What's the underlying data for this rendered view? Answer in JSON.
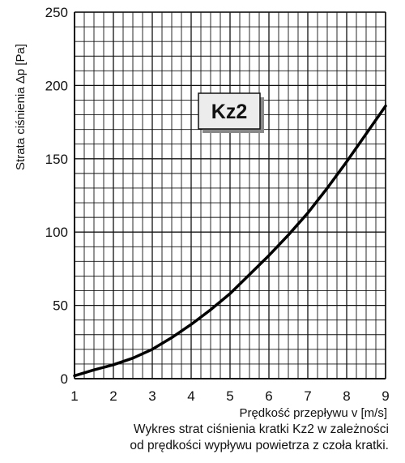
{
  "chart_data": {
    "type": "line",
    "xlabel": "Prędkość przepływu v [m/s]",
    "ylabel": "Strata ciśnienia Δp [Pa]",
    "xlim": [
      1,
      9
    ],
    "ylim": [
      0,
      250
    ],
    "xticks": [
      1,
      2,
      3,
      4,
      5,
      6,
      7,
      8,
      9
    ],
    "yticks": [
      0,
      50,
      100,
      150,
      200,
      250
    ],
    "grid": true,
    "annotation": "Kz2",
    "series": [
      {
        "color": "#000000",
        "x": [
          1,
          1.5,
          2,
          2.5,
          3,
          3.5,
          4,
          4.5,
          5,
          5.5,
          6,
          6.5,
          7,
          7.5,
          8,
          8.5,
          9
        ],
        "y": [
          2,
          6,
          9.5,
          14,
          20,
          28,
          37,
          47,
          58,
          71,
          84,
          98,
          113,
          130,
          148,
          167,
          186
        ]
      }
    ]
  },
  "caption": {
    "line1": "Wykres strat ciśnienia kratki Kz2 w zależności",
    "line2": "od prędkości wypływu powietrza z czoła kratki."
  }
}
